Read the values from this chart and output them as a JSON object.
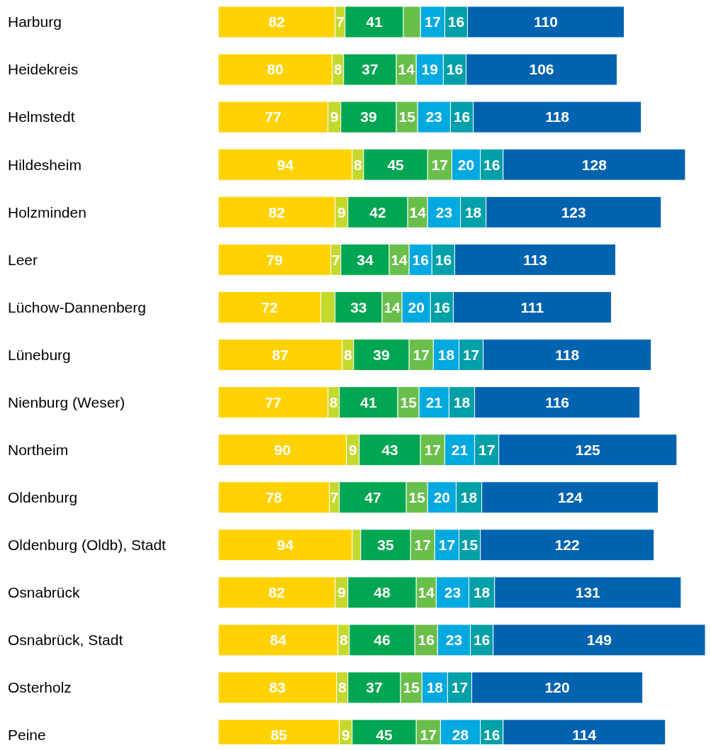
{
  "chart_data": {
    "type": "bar",
    "orientation": "horizontal",
    "stacked": true,
    "categories": [
      "Harburg",
      "Heidekreis",
      "Helmstedt",
      "Hildesheim",
      "Holzminden",
      "Leer",
      "Lüchow-Dannenberg",
      "Lüneburg",
      "Nienburg (Weser)",
      "Northeim",
      "Oldenburg",
      "Oldenburg (Oldb), Stadt",
      "Osnabrück",
      "Osnabrück, Stadt",
      "Osterholz",
      "Peine"
    ],
    "series": [
      {
        "color": "#ffd200",
        "values": [
          82,
          80,
          77,
          94,
          82,
          79,
          72,
          87,
          77,
          90,
          78,
          94,
          82,
          84,
          83,
          85
        ],
        "value_labels": [
          "82",
          "80",
          "77",
          "94",
          "82",
          "79",
          "72",
          "87",
          "77",
          "90",
          "78",
          "94",
          "82",
          "84",
          "83",
          "85"
        ]
      },
      {
        "color": "#c5d92d",
        "values": [
          7,
          8,
          9,
          8,
          9,
          7,
          10,
          8,
          8,
          9,
          7,
          6,
          9,
          8,
          8,
          9
        ],
        "value_labels": [
          "7",
          "8",
          "9",
          "8",
          "9",
          "7",
          null,
          "8",
          "8",
          "9",
          "7",
          null,
          "9",
          "8",
          "8",
          "9"
        ]
      },
      {
        "color": "#00a651",
        "values": [
          41,
          37,
          39,
          45,
          42,
          34,
          33,
          39,
          41,
          43,
          47,
          35,
          48,
          46,
          37,
          45
        ],
        "value_labels": [
          "41",
          "37",
          "39",
          "45",
          "42",
          "34",
          "33",
          "39",
          "41",
          "43",
          "47",
          "35",
          "48",
          "46",
          "37",
          "45"
        ]
      },
      {
        "color": "#6abf4b",
        "values": [
          12,
          14,
          15,
          17,
          14,
          14,
          14,
          17,
          15,
          17,
          15,
          17,
          14,
          16,
          15,
          17
        ],
        "value_labels": [
          null,
          "14",
          "15",
          "17",
          "14",
          "14",
          "14",
          "17",
          "15",
          "17",
          "15",
          "17",
          "14",
          "16",
          "15",
          "17"
        ]
      },
      {
        "color": "#00a9e0",
        "values": [
          17,
          19,
          23,
          20,
          23,
          16,
          20,
          18,
          21,
          21,
          20,
          17,
          23,
          23,
          18,
          28
        ],
        "value_labels": [
          "17",
          "19",
          "23",
          "20",
          "23",
          "16",
          "20",
          "18",
          "21",
          "21",
          "20",
          "17",
          "23",
          "23",
          "18",
          "28"
        ]
      },
      {
        "color": "#00a0a8",
        "values": [
          16,
          16,
          16,
          16,
          18,
          16,
          16,
          17,
          18,
          17,
          18,
          15,
          18,
          16,
          17,
          16
        ],
        "value_labels": [
          "16",
          "16",
          "16",
          "16",
          "18",
          "16",
          "16",
          "17",
          "18",
          "17",
          "18",
          "15",
          "18",
          "16",
          "17",
          "16"
        ]
      },
      {
        "color": "#0063b0",
        "values": [
          110,
          106,
          118,
          128,
          123,
          113,
          111,
          118,
          116,
          125,
          124,
          122,
          131,
          149,
          120,
          114
        ],
        "value_labels": [
          "110",
          "106",
          "118",
          "128",
          "123",
          "113",
          "111",
          "118",
          "116",
          "125",
          "124",
          "122",
          "131",
          "149",
          "120",
          "114"
        ]
      }
    ]
  }
}
